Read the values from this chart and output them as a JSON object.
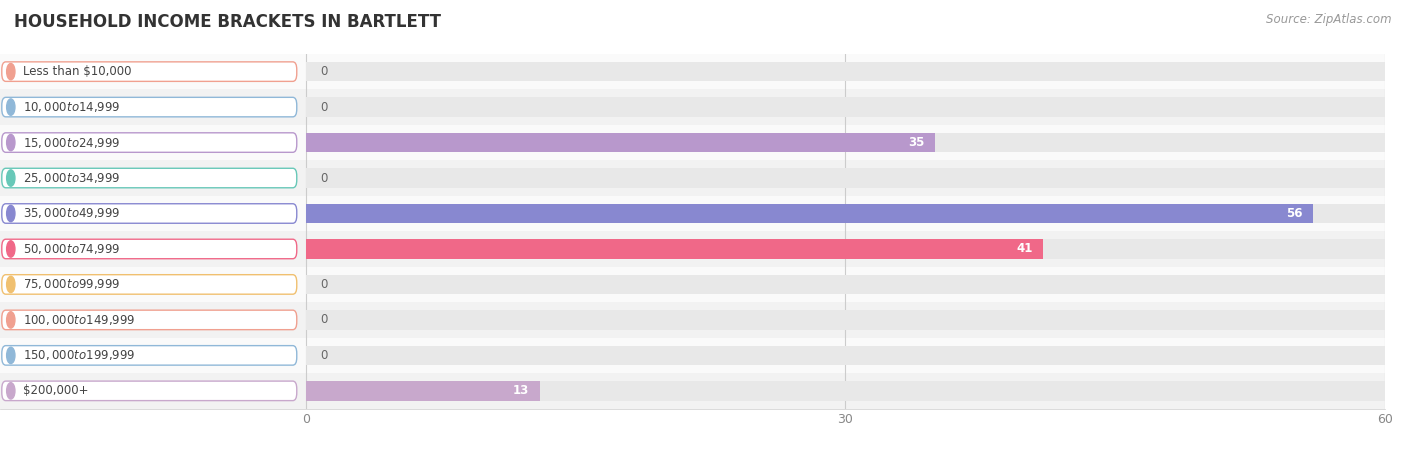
{
  "title": "HOUSEHOLD INCOME BRACKETS IN BARTLETT",
  "source": "Source: ZipAtlas.com",
  "categories": [
    "Less than $10,000",
    "$10,000 to $14,999",
    "$15,000 to $24,999",
    "$25,000 to $34,999",
    "$35,000 to $49,999",
    "$50,000 to $74,999",
    "$75,000 to $99,999",
    "$100,000 to $149,999",
    "$150,000 to $199,999",
    "$200,000+"
  ],
  "values": [
    0,
    0,
    35,
    0,
    56,
    41,
    0,
    0,
    0,
    13
  ],
  "bar_colors": [
    "#f0a090",
    "#90b8d8",
    "#b898cc",
    "#68c8b8",
    "#8888d0",
    "#f06888",
    "#f0c070",
    "#f0a090",
    "#90b8d8",
    "#c8a8cc"
  ],
  "label_border_colors": [
    "#f0a090",
    "#90b8d8",
    "#b898cc",
    "#68c8b8",
    "#8888d0",
    "#f06888",
    "#f0c070",
    "#f0a090",
    "#90b8d8",
    "#c8a8cc"
  ],
  "xlim": [
    0,
    60
  ],
  "xticks": [
    0,
    30,
    60
  ],
  "figsize": [
    14.06,
    4.49
  ],
  "dpi": 100,
  "bg_color": "#ffffff",
  "row_alt_color": "#f7f7f7",
  "bar_bg_color": "#e8e8e8",
  "title_fontsize": 12,
  "source_fontsize": 8.5,
  "label_fontsize": 8.5,
  "value_fontsize": 8.5
}
